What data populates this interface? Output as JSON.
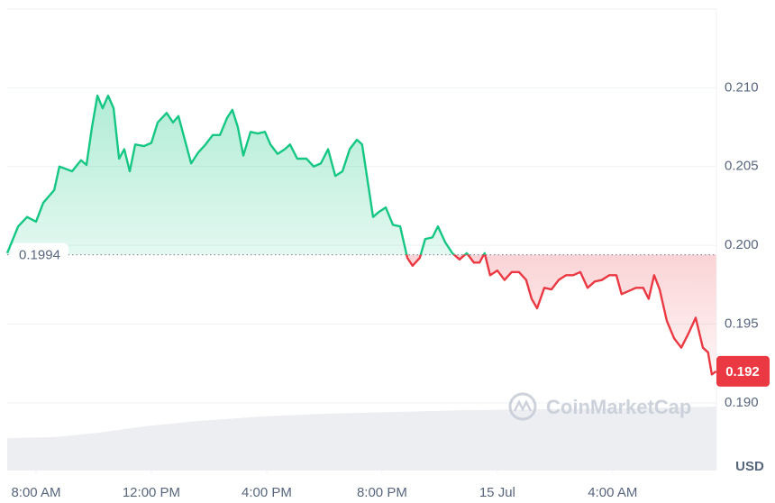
{
  "chart_data": {
    "type": "line",
    "x": [
      7,
      7.38,
      7.69,
      8.0,
      8.25,
      8.63,
      8.81,
      9.25,
      9.56,
      9.75,
      9.94,
      10.13,
      10.31,
      10.5,
      10.69,
      10.88,
      11.06,
      11.25,
      11.44,
      11.75,
      12.0,
      12.22,
      12.53,
      12.75,
      12.94,
      13.16,
      13.38,
      13.63,
      13.88,
      14.13,
      14.38,
      14.63,
      14.81,
      15.0,
      15.19,
      15.44,
      15.69,
      15.94,
      16.13,
      16.38,
      16.63,
      16.81,
      17.06,
      17.38,
      17.63,
      17.88,
      18.13,
      18.38,
      18.63,
      18.88,
      19.13,
      19.31,
      19.5,
      19.69,
      19.88,
      20.13,
      20.38,
      20.63,
      20.88,
      21.06,
      21.31,
      21.5,
      21.75,
      21.94,
      22.19,
      22.44,
      22.69,
      22.94,
      23.19,
      23.38,
      23.56,
      23.75,
      24.0,
      24.25,
      24.5,
      24.75,
      25.0,
      25.19,
      25.38,
      25.63,
      25.88,
      26.13,
      26.38,
      26.63,
      26.88,
      27.13,
      27.38,
      27.63,
      27.88,
      28.13,
      28.31,
      28.56,
      28.81,
      29.06,
      29.25,
      29.44,
      29.63,
      29.88,
      30.13,
      30.38,
      30.63,
      30.88,
      31.13,
      31.31,
      31.44,
      31.59
    ],
    "values": [
      0.1995,
      0.2012,
      0.2018,
      0.2015,
      0.2027,
      0.2035,
      0.205,
      0.2047,
      0.2054,
      0.2051,
      0.2075,
      0.2095,
      0.2087,
      0.2095,
      0.2087,
      0.2055,
      0.2061,
      0.2047,
      0.2064,
      0.2063,
      0.2065,
      0.2078,
      0.2084,
      0.2078,
      0.2082,
      0.2067,
      0.2052,
      0.2059,
      0.2064,
      0.207,
      0.207,
      0.2081,
      0.2086,
      0.2075,
      0.2057,
      0.2072,
      0.2071,
      0.2072,
      0.2064,
      0.2058,
      0.2061,
      0.2064,
      0.2055,
      0.2055,
      0.205,
      0.2052,
      0.2061,
      0.2044,
      0.2047,
      0.2061,
      0.2067,
      0.2064,
      0.2041,
      0.2018,
      0.2021,
      0.2024,
      0.2013,
      0.2012,
      0.1992,
      0.1987,
      0.1992,
      0.2004,
      0.2005,
      0.2012,
      0.2002,
      0.1995,
      0.1991,
      0.1995,
      0.1989,
      0.1989,
      0.1995,
      0.1981,
      0.1984,
      0.1978,
      0.1983,
      0.1983,
      0.1978,
      0.1966,
      0.196,
      0.1973,
      0.1972,
      0.1978,
      0.1981,
      0.1981,
      0.1983,
      0.1973,
      0.1977,
      0.1978,
      0.1981,
      0.1981,
      0.1969,
      0.1971,
      0.1973,
      0.1973,
      0.1966,
      0.1981,
      0.1972,
      0.1952,
      0.1941,
      0.1935,
      0.1944,
      0.1954,
      0.1935,
      0.1932,
      0.1918,
      0.192
    ],
    "xlim": [
      7,
      31.6
    ],
    "xticks": [
      {
        "value": 8,
        "label": "8:00 AM"
      },
      {
        "value": 12,
        "label": "12:00 PM"
      },
      {
        "value": 16,
        "label": "4:00 PM"
      },
      {
        "value": 20,
        "label": "8:00 PM"
      },
      {
        "value": 24,
        "label": "15 Jul"
      },
      {
        "value": 28,
        "label": "4:00 AM"
      }
    ],
    "ylim": [
      0.1857,
      0.215
    ],
    "yticks": [
      {
        "value": 0.19,
        "label": "0.190"
      },
      0.195,
      {
        "value": 0.2,
        "label": "0.200"
      },
      0.205,
      {
        "value": 0.21,
        "label": "0.210"
      }
    ],
    "grid": true,
    "baseline": 0.1994,
    "current_price": 0.192,
    "up_color": "#16c784",
    "down_color": "#ea3943",
    "currency": "USD",
    "watermark": "CoinMarketCap"
  }
}
